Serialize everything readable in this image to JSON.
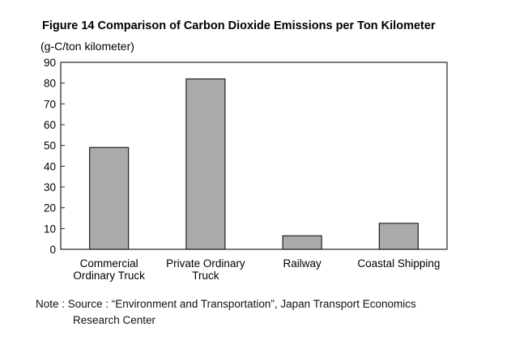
{
  "chart_data": {
    "type": "bar",
    "title": "Figure 14 Comparison of Carbon Dioxide Emissions per Ton Kilometer",
    "unit_label": "(g-C/ton kilometer)",
    "categories": [
      [
        "Commercial",
        "Ordinary Truck"
      ],
      [
        "Private Ordinary",
        "Truck"
      ],
      [
        "Railway"
      ],
      [
        "Coastal Shipping"
      ]
    ],
    "values": [
      49,
      82,
      6.5,
      12.5
    ],
    "ylim": [
      0,
      90
    ],
    "yticks": [
      0,
      10,
      20,
      30,
      40,
      50,
      60,
      70,
      80,
      90
    ],
    "grid": false,
    "legend": "none",
    "bar_fill": "#aaaaaa",
    "bar_stroke": "#222222"
  },
  "note": {
    "line1": "Note : Source :  “Environment  and  Transportation”,  Japan  Transport  Economics",
    "line2": "Research Center"
  }
}
